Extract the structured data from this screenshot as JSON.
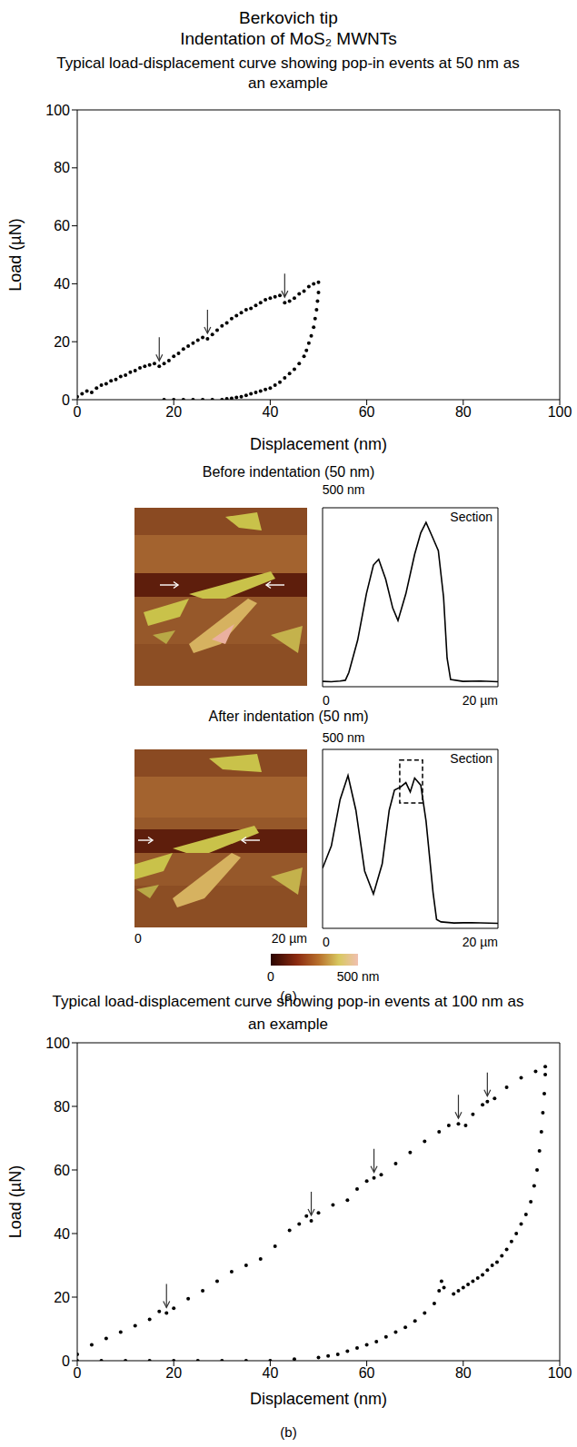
{
  "header": {
    "title": "Berkovich tip",
    "subtitle": "Indentation of MoS₂ MWNTs"
  },
  "chart_data": [
    {
      "type": "scatter",
      "title": "Typical load-displacement curve showing pop-in events at 50 nm as an example",
      "x_label": "Displacement (nm)",
      "y_label": "Load (µN)",
      "x": [
        0,
        1,
        2,
        3,
        4,
        5,
        6,
        7,
        8,
        9,
        10,
        11,
        12,
        13,
        14,
        15,
        16,
        17,
        18,
        19,
        20,
        21,
        22,
        23,
        24,
        25,
        26,
        27,
        28,
        29,
        30,
        31,
        32,
        33,
        34,
        35,
        36,
        37,
        38,
        39,
        40,
        41,
        42,
        43,
        44,
        45,
        46,
        47,
        48,
        49,
        50,
        50,
        49.8,
        49.6,
        49.3,
        49,
        48.5,
        48,
        47.5,
        47,
        46,
        45,
        44,
        43,
        42,
        41,
        40,
        39,
        38,
        37,
        36,
        35,
        34,
        33,
        32,
        31,
        30,
        28,
        26,
        24,
        22,
        20,
        18
      ],
      "values": [
        1,
        2,
        3,
        2.5,
        4,
        5,
        5.5,
        6.5,
        7,
        8,
        8.5,
        9.5,
        10,
        11,
        11.5,
        12,
        12.5,
        11.5,
        12.5,
        13.5,
        15,
        16,
        17.5,
        18.5,
        19.5,
        20.5,
        21.5,
        21,
        22.5,
        24,
        25.5,
        26.5,
        28,
        29,
        30,
        31,
        31.5,
        32.5,
        33.5,
        34.5,
        35,
        35.5,
        36,
        33.5,
        34,
        35,
        36.5,
        37.5,
        39,
        40,
        40.5,
        37,
        34,
        31,
        28,
        25,
        22,
        19.5,
        17,
        15,
        12.5,
        10.5,
        9,
        7.5,
        6,
        5,
        4,
        3.5,
        3,
        2.5,
        2,
        1.5,
        1,
        0.8,
        0.5,
        0.3,
        0,
        0,
        0,
        0,
        0,
        0,
        0
      ],
      "color": "#000000",
      "marker": "circle",
      "xlim": [
        0,
        100
      ],
      "ylim": [
        0,
        100
      ],
      "xticks": [
        0,
        20,
        40,
        60,
        80,
        100
      ],
      "yticks": [
        0,
        20,
        40,
        60,
        80,
        100
      ],
      "grid": false,
      "pop_in_arrows": {
        "x": [
          17,
          27,
          43
        ],
        "y": [
          11.5,
          21,
          33.5
        ]
      }
    },
    {
      "type": "scatter",
      "title": "Typical load-displacement curve showing pop-in events at 100 nm as an example",
      "x_label": "Displacement (nm)",
      "y_label": "Load (µN)",
      "x": [
        0,
        3,
        6,
        9,
        12,
        15,
        17,
        18.5,
        20,
        23,
        26,
        29,
        32,
        35,
        38,
        41,
        44,
        46,
        47.5,
        48.5,
        50,
        53,
        56,
        58,
        60,
        61.5,
        63,
        66,
        69,
        72,
        75,
        77,
        79,
        80.5,
        82,
        84,
        85,
        86.5,
        89,
        92,
        95,
        97,
        97,
        96.8,
        96.5,
        96.2,
        95.8,
        95.3,
        94.7,
        94,
        93,
        92,
        91,
        90,
        89,
        88,
        87,
        86,
        85,
        84,
        83,
        82,
        81,
        80,
        79,
        78,
        76,
        75.5,
        75,
        74,
        72,
        70,
        68,
        66,
        64,
        62,
        60,
        58,
        56,
        54,
        52,
        50,
        45,
        40,
        35,
        30,
        25,
        20,
        15,
        10,
        5,
        0
      ],
      "values": [
        2,
        5,
        7,
        9,
        11,
        13,
        15.5,
        15,
        16.5,
        19.5,
        22,
        25,
        28,
        30,
        32,
        36,
        41,
        43,
        45.5,
        44,
        46.5,
        49,
        50.5,
        54,
        56.5,
        57.5,
        58.5,
        62,
        65.5,
        69,
        72,
        74,
        74.5,
        74,
        77.5,
        80.5,
        81.5,
        82.5,
        86,
        89,
        91,
        92.5,
        90,
        84,
        78,
        72,
        66,
        60,
        55,
        50,
        46,
        43,
        40,
        37.5,
        35,
        33,
        31,
        30,
        28.5,
        27,
        26,
        25,
        24,
        23,
        22,
        21,
        23,
        25,
        22,
        18,
        15,
        12.5,
        10.5,
        9,
        7.5,
        6,
        5,
        4,
        3,
        2,
        1.5,
        1,
        0.5,
        0,
        0,
        0,
        0,
        0,
        0,
        0,
        0,
        0
      ],
      "color": "#000000",
      "marker": "circle",
      "xlim": [
        0,
        100
      ],
      "ylim": [
        0,
        100
      ],
      "xticks": [
        0,
        20,
        40,
        60,
        80,
        100
      ],
      "yticks": [
        0,
        20,
        40,
        60,
        80,
        100
      ],
      "grid": false,
      "pop_in_arrows": {
        "x": [
          18.5,
          48.5,
          61.5,
          79,
          85
        ],
        "y": [
          15,
          44,
          57.5,
          74.5,
          81.5
        ]
      }
    },
    {
      "type": "line",
      "title": "Section",
      "x": [
        0,
        1,
        2,
        2.6,
        3,
        4,
        5,
        5.8,
        6.4,
        7.2,
        8,
        8.6,
        9.5,
        10.5,
        11.2,
        11.8,
        12.5,
        13.2,
        13.8,
        14.2,
        14.6,
        16,
        18,
        20
      ],
      "values": [
        15,
        14,
        16,
        18,
        40,
        130,
        260,
        340,
        356,
        300,
        220,
        185,
        260,
        370,
        430,
        459,
        420,
        380,
        250,
        80,
        20,
        15,
        16,
        14
      ],
      "color": "#000000",
      "xlim": [
        0,
        20
      ],
      "ylim": [
        0,
        500
      ],
      "xticks": [
        {
          "value": 0,
          "label": "0"
        },
        {
          "value": 20,
          "label": "20 µm"
        }
      ],
      "tick_labels": "x"
    },
    {
      "type": "line",
      "title": "Section",
      "x": [
        0,
        1,
        2,
        2.9,
        3.8,
        4.8,
        5.8,
        6.8,
        7.6,
        8.2,
        8.9,
        9.5,
        10,
        10.5,
        11.2,
        11.8,
        12.6,
        13,
        13.5,
        15,
        17,
        20
      ],
      "values": [
        168,
        230,
        360,
        427,
        330,
        160,
        96,
        180,
        330,
        386,
        395,
        407,
        381,
        420,
        400,
        300,
        100,
        25,
        18,
        15,
        16,
        14
      ],
      "color": "#000000",
      "xlim": [
        0,
        20
      ],
      "ylim": [
        0,
        500
      ],
      "xticks": [
        {
          "value": 0,
          "label": "0"
        },
        {
          "value": 20,
          "label": "20 µm"
        }
      ],
      "tick_labels": "x",
      "highlight": {
        "x": [
          8.8,
          11.4
        ],
        "y": [
          350,
          470
        ]
      }
    }
  ],
  "afm": {
    "before": {
      "title": "Before indentation (50 nm)",
      "scale_label": "500 nm"
    },
    "after": {
      "title": "After indentation (50 nm)",
      "scale_label": "500 nm",
      "xlim": [
        0,
        20
      ],
      "xticks": [
        {
          "value": 0,
          "label": "0"
        },
        {
          "value": 20,
          "label": "20 µm"
        }
      ]
    },
    "colorbar": {
      "range": [
        0,
        500
      ],
      "ticks": [
        {
          "value": 0,
          "label": "0"
        },
        {
          "value": 500,
          "label": "500 nm"
        }
      ]
    }
  },
  "panel_labels": [
    "(a)",
    "(b)"
  ]
}
